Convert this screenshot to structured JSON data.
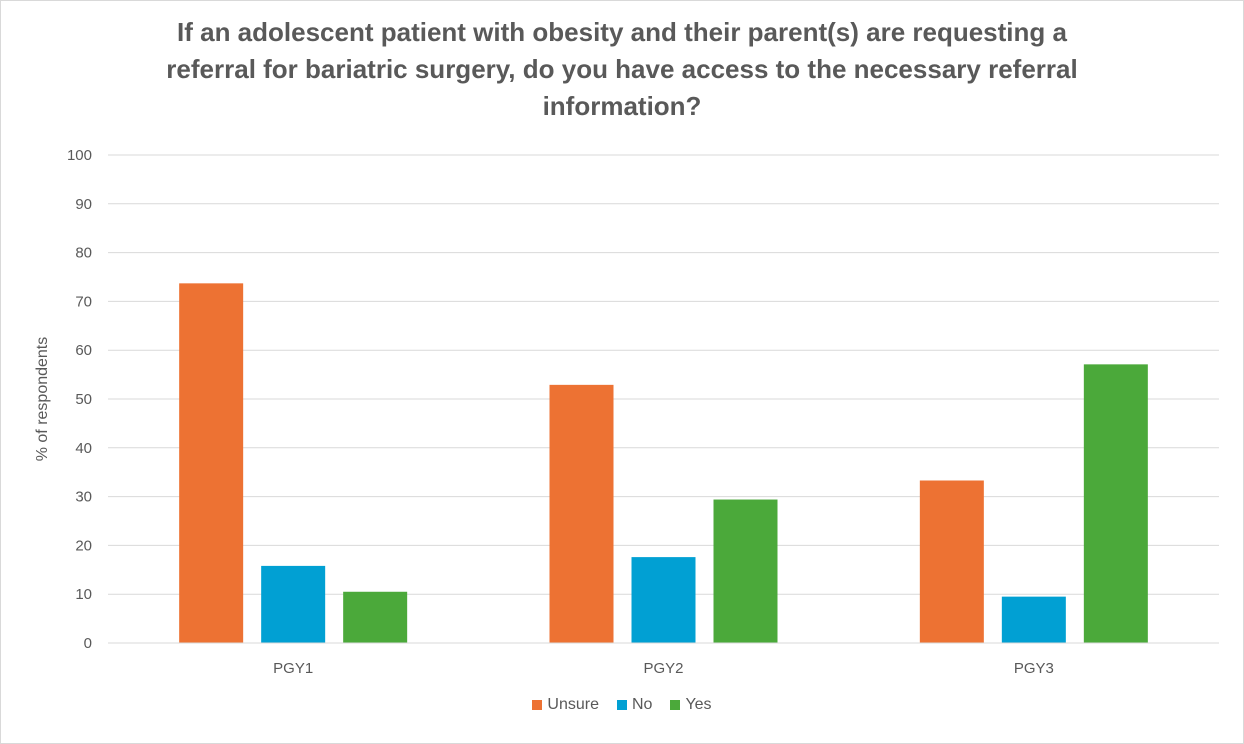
{
  "chart_data": {
    "type": "bar",
    "title_lines": [
      "If an adolescent patient with obesity and their parent(s) are requesting a",
      "referral for bariatric surgery, do you have access to the necessary referral",
      "information?"
    ],
    "xlabel": "",
    "ylabel": "% of respondents",
    "ylim": [
      0,
      100
    ],
    "yticks": [
      "0",
      "10",
      "20",
      "30",
      "40",
      "50",
      "60",
      "70",
      "80",
      "90",
      "100"
    ],
    "categories": [
      "PGY1",
      "PGY2",
      "PGY3"
    ],
    "series": [
      {
        "name": "Unsure",
        "color": "#ed7233",
        "values": [
          73.7,
          52.9,
          33.3
        ]
      },
      {
        "name": "No",
        "color": "#01a0d3",
        "values": [
          15.8,
          17.6,
          9.5
        ]
      },
      {
        "name": "Yes",
        "color": "#4ba93a",
        "values": [
          10.5,
          29.4,
          57.1
        ]
      }
    ],
    "grid": true,
    "legend_position": "bottom"
  }
}
